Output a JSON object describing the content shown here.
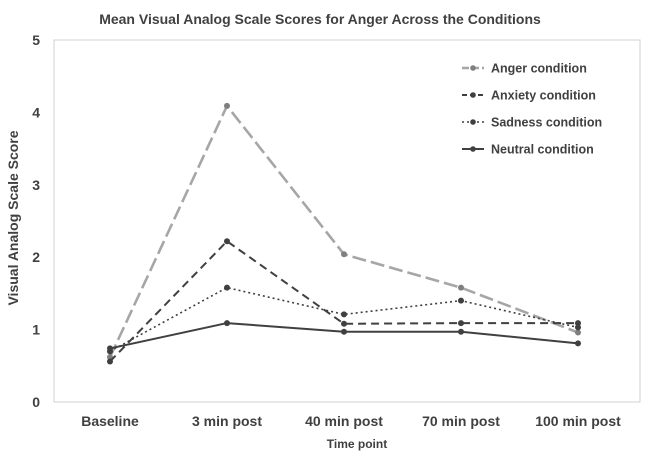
{
  "chart_data": {
    "type": "line",
    "title": "Mean Visual Analog Scale Scores for Anger Across the Conditions",
    "xlabel": "Time point",
    "ylabel": "Visual Analog Scale Score",
    "categories": [
      "Baseline",
      "3 min post",
      "40 min post",
      "70 min post",
      "100 min post"
    ],
    "ylim": [
      0,
      5
    ],
    "yticks": [
      "0",
      "1",
      "2",
      "3",
      "4",
      "5"
    ],
    "grid": false,
    "legend_position": "top-right",
    "series": [
      {
        "name": "Anger condition",
        "values": [
          0.62,
          4.09,
          2.04,
          1.58,
          0.96
        ],
        "color": "#a6a6a6",
        "style": "long-dash"
      },
      {
        "name": "Anxiety condition",
        "values": [
          0.56,
          2.22,
          1.08,
          1.09,
          1.09
        ],
        "color": "#404040",
        "style": "dash"
      },
      {
        "name": "Sadness condition",
        "values": [
          0.7,
          1.58,
          1.21,
          1.4,
          1.03
        ],
        "color": "#404040",
        "style": "dot"
      },
      {
        "name": "Neutral condition",
        "values": [
          0.74,
          1.09,
          0.97,
          0.97,
          0.81
        ],
        "color": "#404040",
        "style": "solid"
      }
    ]
  }
}
